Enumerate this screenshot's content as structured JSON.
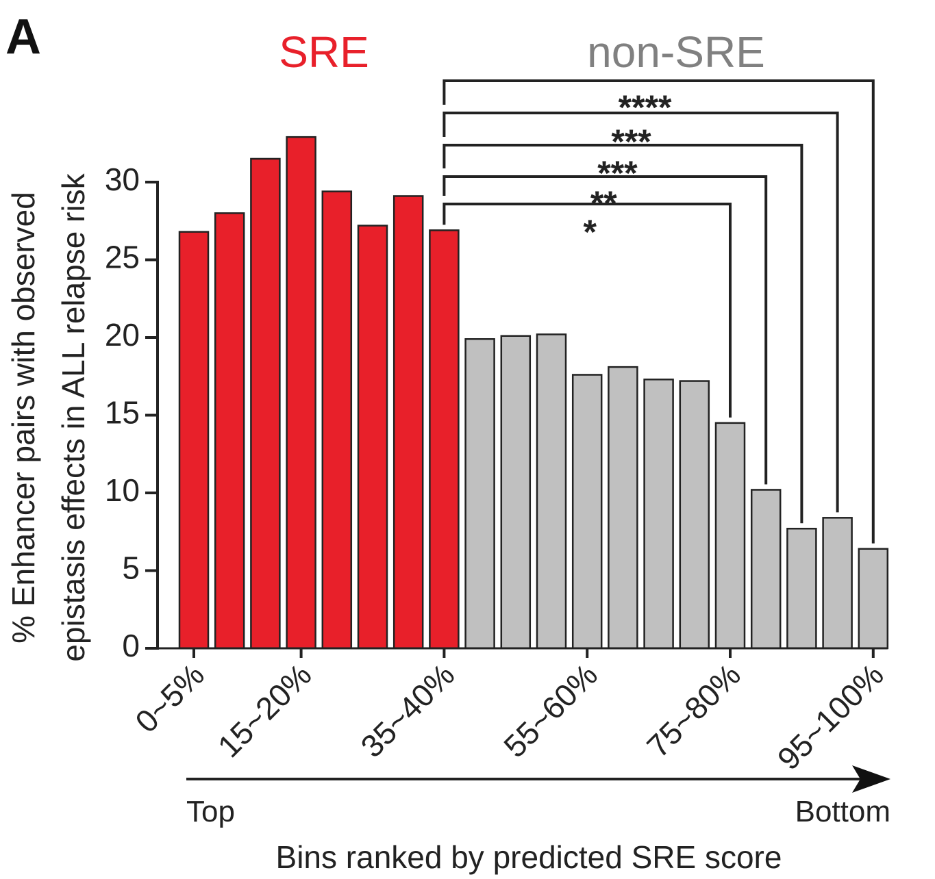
{
  "panel_label": "A",
  "chart_data": {
    "type": "bar",
    "groups": [
      {
        "name": "SRE",
        "color": "#e8202a",
        "count": 8
      },
      {
        "name": "non-SRE",
        "color": "#c0c0c0",
        "count": 12
      }
    ],
    "tick_labels": [
      {
        "index": 0,
        "label": "0~5%"
      },
      {
        "index": 3,
        "label": "15~20%"
      },
      {
        "index": 7,
        "label": "35~40%"
      },
      {
        "index": 11,
        "label": "55~60%"
      },
      {
        "index": 15,
        "label": "75~80%"
      },
      {
        "index": 19,
        "label": "95~100%"
      }
    ],
    "values": [
      26.8,
      28.0,
      31.5,
      32.9,
      29.4,
      27.2,
      29.1,
      26.9,
      19.9,
      20.1,
      20.2,
      17.6,
      18.1,
      17.3,
      17.2,
      14.5,
      10.2,
      7.7,
      8.4,
      6.4
    ],
    "ylabel_line1": "% Enhancer pairs with observed",
    "ylabel_line2": "epistasis effects in ALL relapse risk",
    "xlabel": "Bins ranked by predicted SRE score",
    "direction": {
      "start": "Top",
      "end": "Bottom"
    },
    "ylim": [
      0,
      34
    ],
    "yticks": [
      0,
      5,
      10,
      15,
      20,
      25,
      30
    ],
    "significance": [
      {
        "from": 7,
        "to": 15,
        "label": "*"
      },
      {
        "from": 7,
        "to": 16,
        "label": "**"
      },
      {
        "from": 7,
        "to": 17,
        "label": "***"
      },
      {
        "from": 7,
        "to": 18,
        "label": "***"
      },
      {
        "from": 7,
        "to": 19,
        "label": "****"
      }
    ]
  }
}
